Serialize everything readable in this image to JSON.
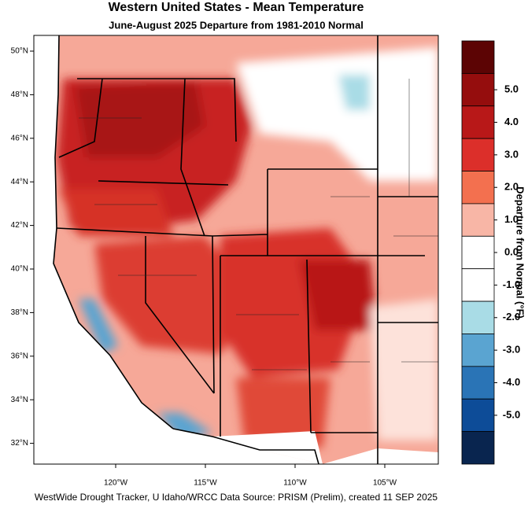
{
  "title": "Western United States - Mean Temperature",
  "subtitle": "June-August 2025  Departure from 1981-2010 Normal",
  "latitude_ticks": [
    {
      "value": 50,
      "label": "50°N"
    },
    {
      "value": 48,
      "label": "48°N"
    },
    {
      "value": 46,
      "label": "46°N"
    },
    {
      "value": 44,
      "label": "44°N"
    },
    {
      "value": 42,
      "label": "42°N"
    },
    {
      "value": 40,
      "label": "40°N"
    },
    {
      "value": 38,
      "label": "38°N"
    },
    {
      "value": 36,
      "label": "36°N"
    },
    {
      "value": 34,
      "label": "34°N"
    },
    {
      "value": 32,
      "label": "32°N"
    }
  ],
  "longitude_ticks": [
    {
      "value": -120,
      "label": "120°W"
    },
    {
      "value": -115,
      "label": "115°W"
    },
    {
      "value": -110,
      "label": "110°W"
    },
    {
      "value": -105,
      "label": "105°W"
    }
  ],
  "colorbar": {
    "title": "Departure from Normal (°F)",
    "ticks": [
      {
        "value": 5,
        "label": "5.0"
      },
      {
        "value": 4,
        "label": "4.0"
      },
      {
        "value": 3,
        "label": "3.0"
      },
      {
        "value": 2,
        "label": "2.0"
      },
      {
        "value": 1,
        "label": "1.0"
      },
      {
        "value": 0,
        "label": "0.0"
      },
      {
        "value": -1,
        "label": "-1.0"
      },
      {
        "value": -2,
        "label": "-2.0"
      },
      {
        "value": -3,
        "label": "-3.0"
      },
      {
        "value": -4,
        "label": "-4.0"
      },
      {
        "value": -5,
        "label": "-5.0"
      }
    ],
    "colors": [
      "#5c0404",
      "#950d0d",
      "#b81818",
      "#dc2f2a",
      "#f3704f",
      "#f8b6a6",
      "#ffffff",
      "#ffffff",
      "#a9dce6",
      "#5aa4d1",
      "#2a74b6",
      "#0d4c98",
      "#09254f"
    ]
  },
  "footer": "WestWide Drought Tracker, U Idaho/WRCC Data Source: PRISM (Prelim), created 11 SEP 2025"
}
